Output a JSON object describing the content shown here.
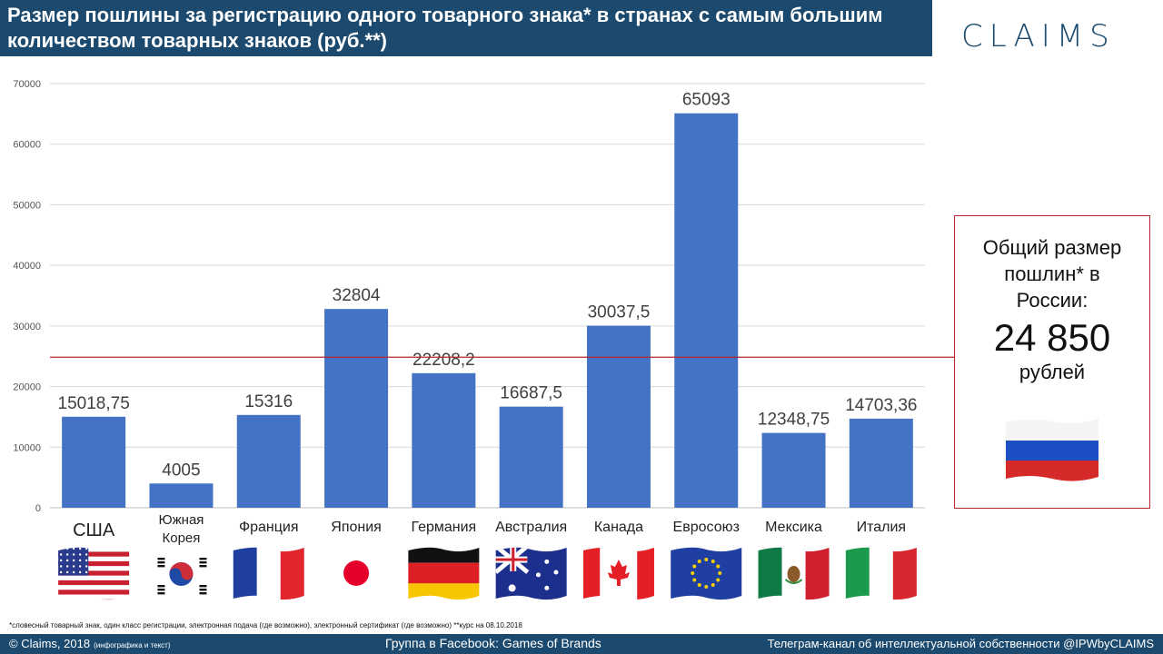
{
  "header": {
    "title": "Размер пошлины за регистрацию одного товарного знака* в странах с самым большим количеством товарных знаков (руб.**)",
    "logo": "CLAIMS"
  },
  "chart_data": {
    "type": "bar",
    "categories": [
      "США",
      "Южная Корея",
      "Франция",
      "Япония",
      "Германия",
      "Австралия",
      "Канада",
      "Евросоюз",
      "Мексика",
      "Италия"
    ],
    "values": [
      15018.75,
      4005,
      15316,
      32804,
      22208.2,
      16687.5,
      30037.5,
      65093,
      12348.75,
      14703.36
    ],
    "data_labels": [
      "15018,75",
      "4005",
      "15316",
      "32804",
      "22208,2",
      "16687,5",
      "30037,5",
      "65093",
      "12348,75",
      "14703,36"
    ],
    "ylim": [
      0,
      70000
    ],
    "yticks": [
      0,
      10000,
      20000,
      30000,
      40000,
      50000,
      60000,
      70000
    ],
    "reference_line": 24850,
    "grid": true,
    "bar_color": "#4472c4",
    "reference_color": "#b3262a",
    "title": "",
    "xlabel": "",
    "ylabel": ""
  },
  "flags": [
    "us-flag-icon",
    "south-korea-flag-icon",
    "france-flag-icon",
    "japan-flag-icon",
    "germany-flag-icon",
    "australia-flag-icon",
    "canada-flag-icon",
    "eu-flag-icon",
    "mexico-flag-icon",
    "italy-flag-icon"
  ],
  "info_box": {
    "label": "Общий размер пошлин* в России:",
    "value": "24 850",
    "unit": "рублей",
    "flag": "russia-flag-icon"
  },
  "footnote": {
    "text": "*словесный товарный знак, один класс регистрации, электронная подача (где возможно), электронный сертификат (где возможно)  **курс на 08.10.2018"
  },
  "footer": {
    "copyright": "© Claims, 2018",
    "copyright_note": "(инфографика и текст)",
    "facebook": "Группа в Facebook: Games of Brands",
    "telegram": "Телеграм-канал  об интеллектуальной  собственности  @IPWbyCLAIMS"
  },
  "colors": {
    "brand": "#1b4a6e",
    "accent": "#b3262a",
    "bar": "#4472c4"
  }
}
